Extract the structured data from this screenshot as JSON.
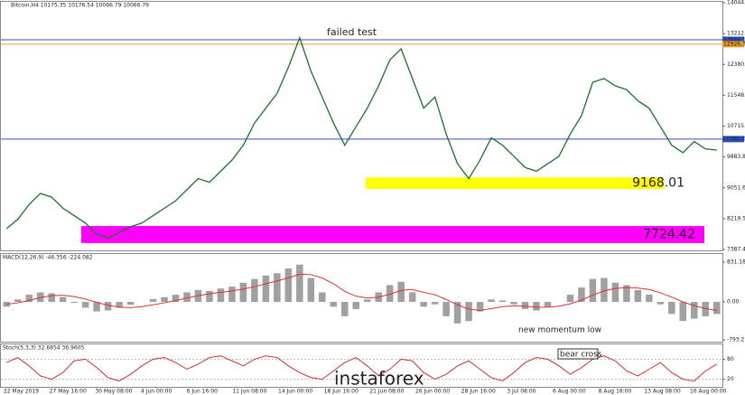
{
  "chart_data": {
    "type": "line",
    "title": "Bitcoin,H4 10175.35 10176.54 10066.79 10066.79",
    "series": [
      {
        "name": "Bitcoin,H4",
        "color": "#1f6f2a",
        "values": [
          7950,
          8200,
          8600,
          8900,
          8800,
          8500,
          8300,
          8100,
          7800,
          7700,
          7850,
          8000,
          8100,
          8300,
          8500,
          8700,
          9000,
          9300,
          9200,
          9500,
          9800,
          10200,
          10800,
          11200,
          11600,
          12300,
          13100,
          12200,
          11500,
          10800,
          10200,
          10700,
          11200,
          11800,
          12500,
          12800,
          12000,
          11200,
          11500,
          10500,
          9700,
          9300,
          9800,
          10400,
          10200,
          9900,
          9600,
          9500,
          9700,
          9900,
          10500,
          11000,
          11900,
          12000,
          11800,
          11700,
          11400,
          11200,
          10700,
          10200,
          10000,
          10300,
          10100,
          10070
        ]
      }
    ],
    "ylim": [
      7387.47,
      14044.4
    ],
    "yticks": [
      {
        "value": 7387.47,
        "label": "7387.47"
      },
      {
        "value": 8219.58,
        "label": "8219.58"
      },
      {
        "value": 9051.69,
        "label": "9051.69"
      },
      {
        "value": 9883.81,
        "label": "9883.81"
      },
      {
        "value": 10715.92,
        "label": "10715.92"
      },
      {
        "value": 11548.03,
        "label": "11548.03"
      },
      {
        "value": 12380.14,
        "label": "12380.14"
      },
      {
        "value": 13212.25,
        "label": "13212.25"
      },
      {
        "value": 14044.4,
        "label": "14044.40"
      }
    ],
    "levels": [
      {
        "value": 13044.15,
        "label": "13044.15",
        "color": "#3050c0"
      },
      {
        "value": 12926.31,
        "label": "12926.31",
        "color": "#e8a020"
      },
      {
        "value": 10365.08,
        "label": "10365.08",
        "color": "#3050c0"
      }
    ],
    "zones": [
      {
        "label": "9168.01",
        "low": 9020,
        "high": 9330,
        "color": "#ffff00",
        "text_color": "#2a8a2a"
      },
      {
        "label": "7724.42",
        "low": 7560,
        "high": 8020,
        "color": "#ff00ff",
        "text_color": "#c8a0c8"
      }
    ],
    "annotations": {
      "failed_test": "failed test",
      "momentum": "new momentum low",
      "bear_cross": "bear cross",
      "watermark": "instaforex"
    },
    "x_labels": [
      "22 May 2019",
      "27 May 16:00",
      "30 May 08:00",
      "4 Jun 00:00",
      "6 Jun 16:00",
      "11 Jun 08:00",
      "14 Jun 00:00",
      "18 Jun 16:00",
      "21 Jun 08:00",
      "26 Jun 00:00",
      "28 Jun 16:00",
      "3 Jul 08:00",
      "6 Aug 00:00",
      "8 Aug 16:00",
      "13 Aug 08:00",
      "16 Aug 00:00"
    ],
    "macd": {
      "title": "MACD(12,26,9) -46.356 -224.082",
      "ylim": [
        -793.27,
        831.18
      ],
      "yticks": [
        {
          "value": -793.27,
          "label": "-793.27"
        },
        {
          "value": 0,
          "label": "0.00"
        },
        {
          "value": 831.18,
          "label": "831.18"
        }
      ],
      "histogram": [
        -100,
        50,
        150,
        200,
        180,
        100,
        -20,
        -120,
        -200,
        -180,
        -120,
        -60,
        0,
        60,
        100,
        150,
        200,
        250,
        230,
        280,
        320,
        400,
        480,
        550,
        600,
        700,
        780,
        500,
        200,
        -100,
        -300,
        -150,
        50,
        200,
        350,
        420,
        200,
        -100,
        -50,
        -300,
        -450,
        -400,
        -200,
        50,
        30,
        -50,
        -150,
        -180,
        -100,
        0,
        150,
        300,
        480,
        500,
        400,
        350,
        250,
        150,
        -50,
        -250,
        -400,
        -350,
        -300,
        -250
      ],
      "signal": [
        -50,
        -20,
        30,
        90,
        130,
        140,
        110,
        60,
        -10,
        -70,
        -110,
        -120,
        -100,
        -60,
        -20,
        30,
        80,
        130,
        170,
        200,
        230,
        270,
        320,
        380,
        440,
        500,
        580,
        570,
        500,
        380,
        220,
        120,
        80,
        100,
        160,
        240,
        260,
        200,
        150,
        50,
        -60,
        -150,
        -180,
        -140,
        -100,
        -80,
        -90,
        -110,
        -110,
        -90,
        -40,
        40,
        140,
        230,
        280,
        300,
        290,
        260,
        190,
        100,
        0,
        -80,
        -140,
        -180
      ],
      "hist_color": "#a0a0a0",
      "signal_color": "#e03030"
    },
    "stoch": {
      "title": "Stoch(5,3,3) 32.6854 36.9605",
      "ylim": [
        0,
        100
      ],
      "yticks": [
        20,
        80
      ],
      "color": "#d03030",
      "values": [
        70,
        85,
        60,
        30,
        20,
        40,
        75,
        80,
        55,
        25,
        15,
        35,
        60,
        80,
        85,
        70,
        50,
        65,
        85,
        90,
        75,
        60,
        80,
        90,
        85,
        60,
        40,
        25,
        20,
        45,
        70,
        85,
        60,
        30,
        50,
        80,
        75,
        40,
        20,
        35,
        60,
        75,
        50,
        25,
        15,
        40,
        70,
        85,
        80,
        60,
        35,
        55,
        80,
        90,
        75,
        45,
        30,
        50,
        70,
        40,
        20,
        15,
        45,
        65
      ]
    }
  }
}
